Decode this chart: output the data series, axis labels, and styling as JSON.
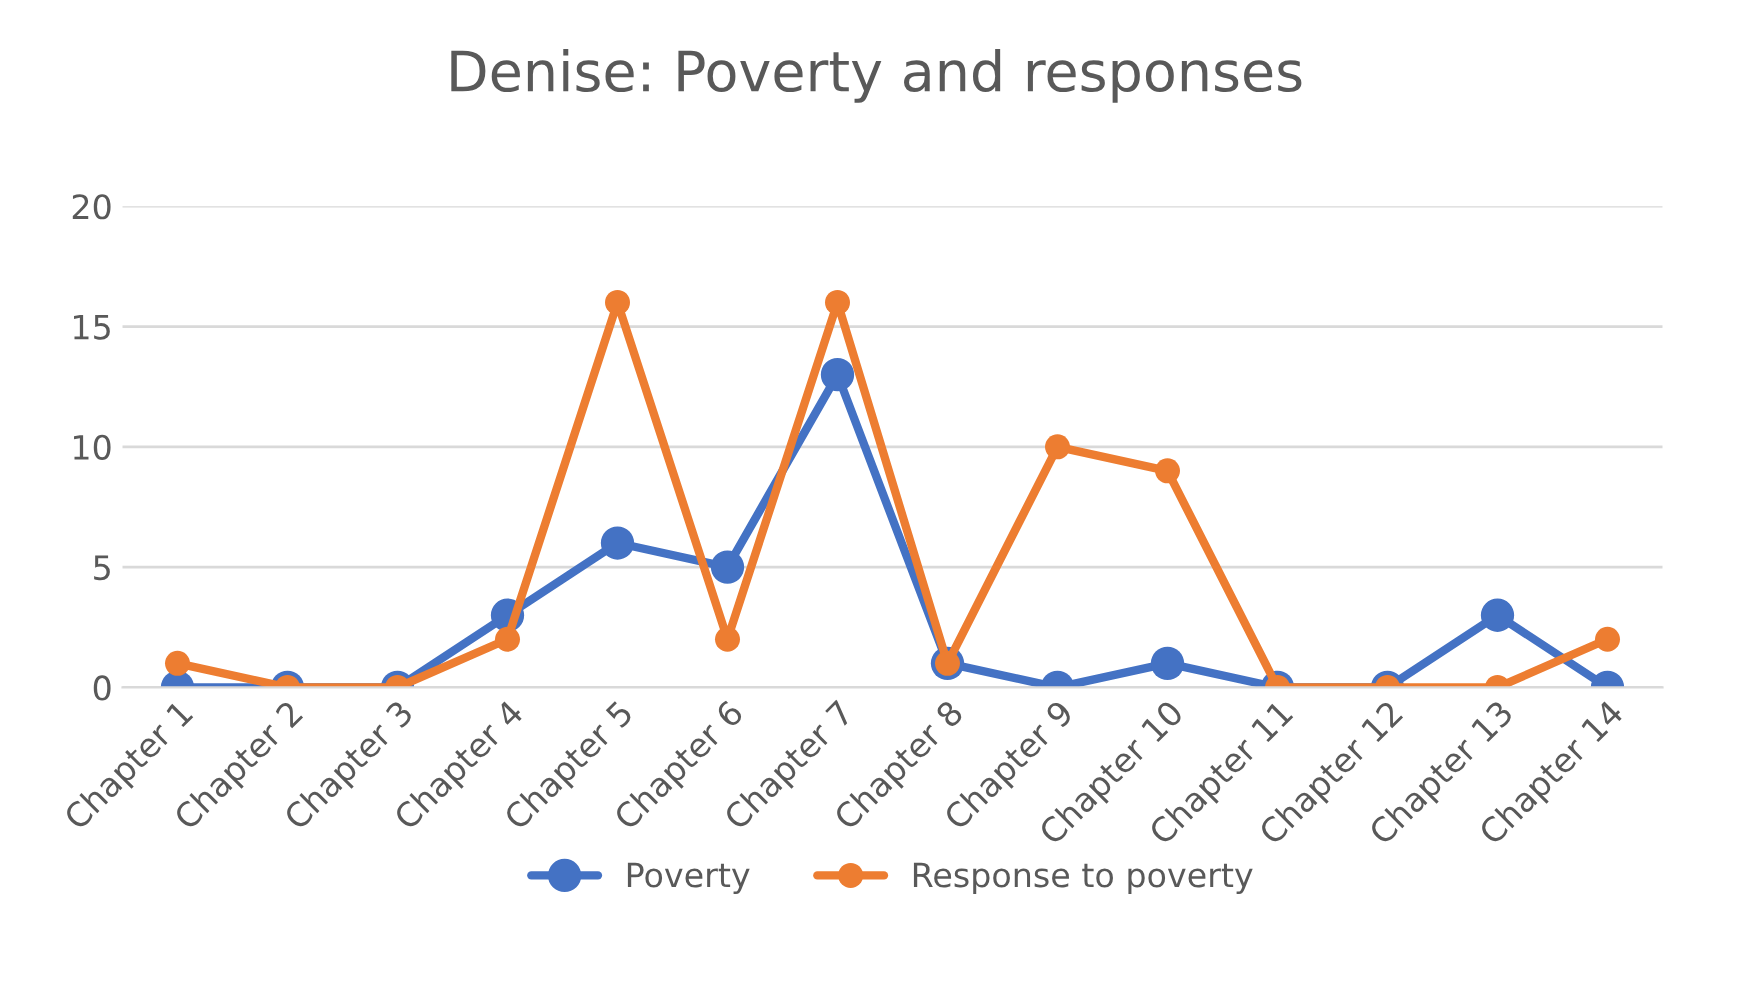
{
  "chart_data": {
    "type": "line",
    "title": "Denise: Poverty and responses",
    "categories": [
      "Chapter 1",
      "Chapter 2",
      "Chapter 3",
      "Chapter 4",
      "Chapter 5",
      "Chapter 6",
      "Chapter 7",
      "Chapter 8",
      "Chapter 9",
      "Chapter 10",
      "Chapter 11",
      "Chapter 12",
      "Chapter 13",
      "Chapter 14"
    ],
    "series": [
      {
        "name": "Poverty",
        "color": "#4472c4",
        "values": [
          0,
          0,
          0,
          3,
          6,
          5,
          13,
          1,
          0,
          1,
          0,
          0,
          3,
          0
        ]
      },
      {
        "name": "Response to poverty",
        "color": "#ed7d31",
        "values": [
          1,
          0,
          0,
          2,
          16,
          2,
          16,
          1,
          10,
          9,
          0,
          0,
          0,
          2
        ]
      }
    ],
    "ylim": [
      0,
      20
    ],
    "yticks": [
      0,
      5,
      10,
      15,
      20
    ],
    "grid": "y",
    "legend": "bottom",
    "marker": "circle",
    "line_style": "solid"
  }
}
